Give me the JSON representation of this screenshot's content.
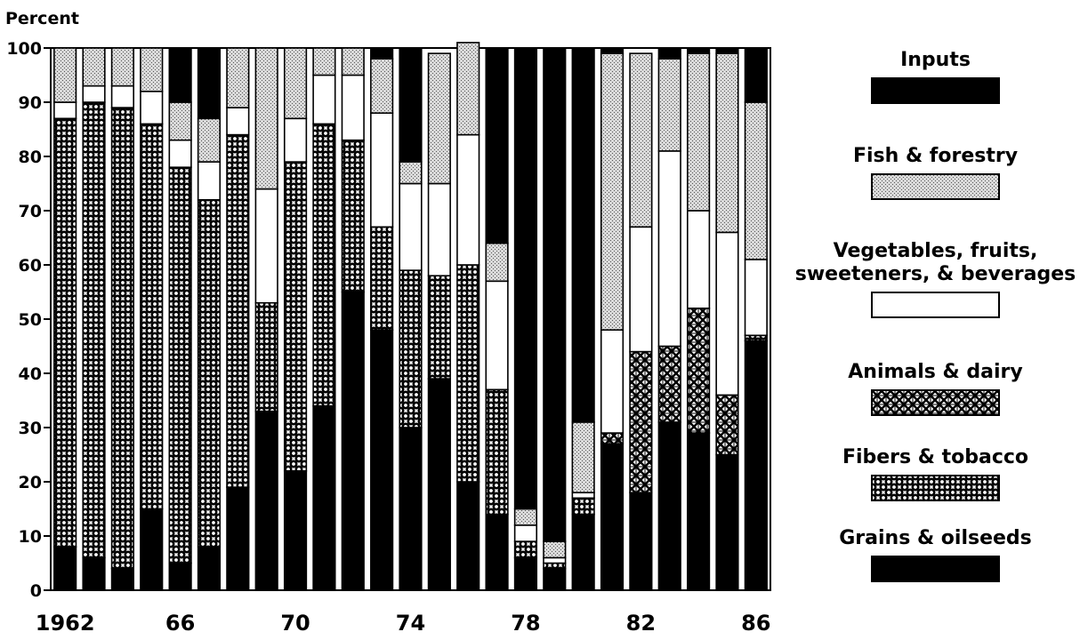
{
  "chart_data": {
    "type": "bar",
    "stacked": true,
    "title": "",
    "ylabel": "Percent",
    "xlabel": "",
    "ylim": [
      0,
      100
    ],
    "yticks": [
      0,
      10,
      20,
      30,
      40,
      50,
      60,
      70,
      80,
      90,
      100
    ],
    "x_tick_labels": [
      {
        "year": 1962,
        "label": "1962"
      },
      {
        "year": 1966,
        "label": "66"
      },
      {
        "year": 1970,
        "label": "70"
      },
      {
        "year": 1974,
        "label": "74"
      },
      {
        "year": 1978,
        "label": "78"
      },
      {
        "year": 1982,
        "label": "82"
      },
      {
        "year": 1986,
        "label": "86"
      }
    ],
    "grid": false,
    "legend_position": "right",
    "categories": [
      "1962",
      "1963",
      "1964",
      "1965",
      "1966",
      "1967",
      "1968",
      "1969",
      "1970",
      "1971",
      "1972",
      "1973",
      "1974",
      "1975",
      "1976",
      "1977",
      "1978",
      "1979",
      "1980",
      "1981",
      "1982",
      "1983",
      "1984",
      "1985",
      "1986"
    ],
    "series": [
      {
        "name": "Grains & oilseeds",
        "color": "#000000",
        "pattern": "solid",
        "values": [
          8,
          6,
          4,
          15,
          5,
          8,
          19,
          33,
          22,
          34,
          55,
          48,
          30,
          39,
          20,
          14,
          6,
          4,
          14,
          27,
          18,
          31,
          29,
          25,
          46
        ]
      },
      {
        "name": "Fibers & tobacco",
        "color": "#000000",
        "pattern": "dots",
        "values": [
          79,
          84,
          85,
          71,
          73,
          64,
          65,
          20,
          57,
          52,
          28,
          19,
          29,
          19,
          40,
          23,
          3,
          1,
          3,
          0,
          0,
          0,
          0,
          0,
          1
        ]
      },
      {
        "name": "Animals & dairy",
        "color": "#000000",
        "pattern": "crosshatch",
        "values": [
          0,
          0,
          0,
          0,
          0,
          0,
          0,
          0,
          0,
          0,
          0,
          0,
          0,
          0,
          0,
          0,
          0,
          0,
          0,
          2,
          26,
          14,
          23,
          11,
          0
        ]
      },
      {
        "name": "Vegetables, fruits, sweeteners, & beverages",
        "color": "#ffffff",
        "pattern": "white",
        "values": [
          3,
          3,
          4,
          6,
          5,
          7,
          5,
          21,
          8,
          9,
          12,
          21,
          16,
          17,
          24,
          20,
          3,
          1,
          1,
          19,
          23,
          36,
          18,
          30,
          14
        ]
      },
      {
        "name": "Fish & forestry",
        "color": "#d8d8d8",
        "pattern": "stipple",
        "values": [
          10,
          7,
          7,
          8,
          7,
          8,
          11,
          26,
          13,
          5,
          5,
          10,
          4,
          24,
          17,
          7,
          3,
          3,
          13,
          51,
          32,
          17,
          29,
          33,
          29
        ]
      },
      {
        "name": "Inputs",
        "color": "#000000",
        "pattern": "solid",
        "values": [
          0,
          0,
          0,
          0,
          10,
          13,
          0,
          0,
          0,
          0,
          0,
          2,
          21,
          0,
          0,
          36,
          85,
          91,
          69,
          1,
          0,
          2,
          1,
          1,
          10
        ]
      }
    ]
  },
  "legend": {
    "items": [
      {
        "key": "inputs",
        "label": "Inputs"
      },
      {
        "key": "fish",
        "label": "Fish & forestry"
      },
      {
        "key": "veg",
        "label": "Vegetables, fruits,\nsweeteners, & beverages"
      },
      {
        "key": "animals",
        "label": "Animals & dairy"
      },
      {
        "key": "fibers",
        "label": "Fibers & tobacco"
      },
      {
        "key": "grains",
        "label": "Grains & oilseeds"
      }
    ]
  }
}
